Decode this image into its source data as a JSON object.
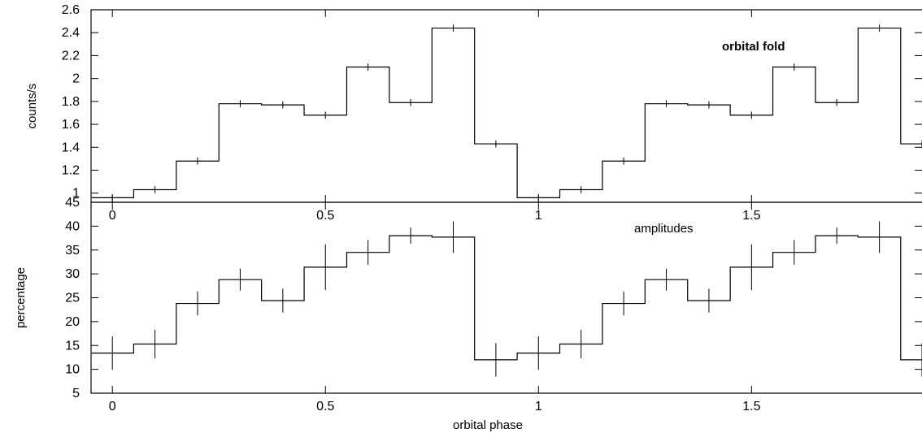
{
  "chart_data": [
    {
      "type": "line",
      "line_style": "step",
      "ylabel": "counts/s",
      "annotation": "orbital fold",
      "xlim": [
        -0.05,
        1.9
      ],
      "ylim": [
        0.92,
        2.6
      ],
      "y_ticks": [
        1,
        1.2,
        1.4,
        1.6,
        1.8,
        2,
        2.2,
        2.4,
        2.6
      ],
      "x_ticks": [
        0,
        0.5,
        1,
        1.5
      ],
      "x": [
        0,
        0.1,
        0.2,
        0.3,
        0.4,
        0.5,
        0.6,
        0.7,
        0.8,
        0.9,
        1.0,
        1.1,
        1.2,
        1.3,
        1.4,
        1.5,
        1.6,
        1.7,
        1.8,
        1.9
      ],
      "series": [
        {
          "values": [
            0.96,
            1.03,
            1.28,
            1.78,
            1.77,
            1.68,
            2.1,
            1.79,
            2.44,
            1.43,
            0.96,
            1.03,
            1.28,
            1.78,
            1.77,
            1.68,
            2.1,
            1.79,
            2.44,
            1.43
          ],
          "errors": [
            0.01,
            0.01,
            0.01,
            0.01,
            0.01,
            0.01,
            0.01,
            0.01,
            0.01,
            0.01,
            0.01,
            0.01,
            0.01,
            0.01,
            0.01,
            0.01,
            0.01,
            0.01,
            0.01,
            0.01
          ]
        }
      ]
    },
    {
      "type": "line",
      "line_style": "step",
      "ylabel": "percentage",
      "xlabel": "orbital phase",
      "annotation": "amplitudes",
      "xlim": [
        -0.05,
        1.9
      ],
      "ylim": [
        5,
        45
      ],
      "y_ticks": [
        5,
        10,
        15,
        20,
        25,
        30,
        35,
        40,
        45
      ],
      "x_ticks": [
        0,
        0.5,
        1,
        1.5
      ],
      "x": [
        0,
        0.1,
        0.2,
        0.3,
        0.4,
        0.5,
        0.6,
        0.7,
        0.8,
        0.9,
        1.0,
        1.1,
        1.2,
        1.3,
        1.4,
        1.5,
        1.6,
        1.7,
        1.8,
        1.9
      ],
      "series": [
        {
          "values": [
            13.4,
            15.3,
            23.8,
            28.8,
            24.4,
            31.4,
            34.5,
            38.0,
            37.7,
            12.0,
            13.4,
            15.3,
            23.8,
            28.8,
            24.4,
            31.4,
            34.5,
            38.0,
            37.7,
            12.0
          ],
          "errors": [
            3.5,
            3.0,
            2.5,
            2.3,
            2.5,
            4.8,
            2.6,
            1.7,
            3.3,
            3.5,
            3.5,
            3.0,
            2.5,
            2.3,
            2.5,
            4.8,
            2.6,
            1.7,
            3.3,
            3.5
          ]
        }
      ]
    }
  ]
}
